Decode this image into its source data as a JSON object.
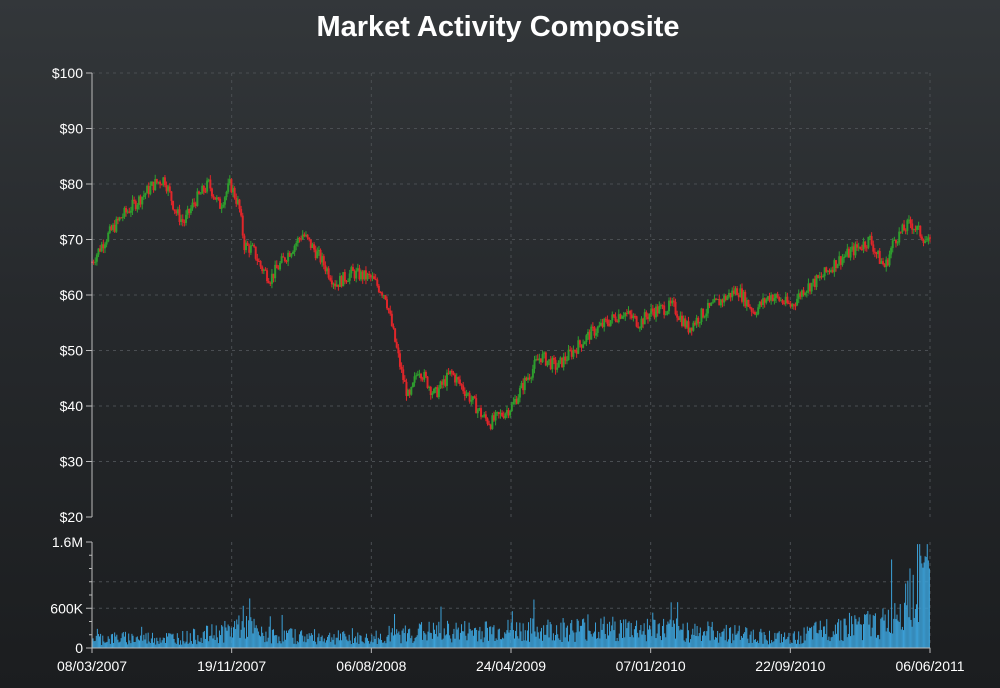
{
  "chart_data": {
    "type": "candlestick",
    "title": "Market Activity Composite",
    "x_axis": {
      "type": "date",
      "range": [
        "2007-03-08",
        "2011-06-06"
      ],
      "tick_labels": [
        "08/03/2007",
        "19/11/2007",
        "06/08/2008",
        "24/04/2009",
        "07/01/2010",
        "22/09/2010",
        "06/06/2011"
      ]
    },
    "price_panel": {
      "ylim": [
        20,
        100
      ],
      "y_ticks": [
        20,
        30,
        40,
        50,
        60,
        70,
        80,
        90,
        100
      ],
      "y_tick_labels": [
        "$20",
        "$30",
        "$40",
        "$50",
        "$60",
        "$70",
        "$80",
        "$90",
        "$100"
      ],
      "up_color": "#2e9e2e",
      "down_color": "#e0262a",
      "approx_close_path": [
        [
          "2007-03-08",
          66
        ],
        [
          "2007-04-01",
          70
        ],
        [
          "2007-05-01",
          74
        ],
        [
          "2007-06-01",
          77
        ],
        [
          "2007-07-01",
          80
        ],
        [
          "2007-07-20",
          81
        ],
        [
          "2007-08-10",
          75
        ],
        [
          "2007-08-25",
          73
        ],
        [
          "2007-09-15",
          77
        ],
        [
          "2007-10-10",
          80
        ],
        [
          "2007-10-30",
          76
        ],
        [
          "2007-11-19",
          80
        ],
        [
          "2007-12-05",
          76
        ],
        [
          "2007-12-15",
          69
        ],
        [
          "2008-01-01",
          68
        ],
        [
          "2008-01-15",
          65
        ],
        [
          "2008-02-01",
          63
        ],
        [
          "2008-03-01",
          67
        ],
        [
          "2008-04-01",
          71
        ],
        [
          "2008-05-01",
          67
        ],
        [
          "2008-06-01",
          62
        ],
        [
          "2008-07-01",
          64
        ],
        [
          "2008-08-06",
          63
        ],
        [
          "2008-09-01",
          60
        ],
        [
          "2008-10-01",
          46
        ],
        [
          "2008-10-15",
          41
        ],
        [
          "2008-11-01",
          47
        ],
        [
          "2008-12-01",
          42
        ],
        [
          "2009-01-01",
          46
        ],
        [
          "2009-02-01",
          42
        ],
        [
          "2009-03-01",
          38
        ],
        [
          "2009-03-15",
          37
        ],
        [
          "2009-04-24",
          40
        ],
        [
          "2009-05-15",
          44
        ],
        [
          "2009-06-15",
          49
        ],
        [
          "2009-07-15",
          47
        ],
        [
          "2009-08-15",
          50
        ],
        [
          "2009-09-15",
          53
        ],
        [
          "2009-10-15",
          55
        ],
        [
          "2009-11-15",
          57
        ],
        [
          "2009-12-15",
          55
        ],
        [
          "2010-01-07",
          57
        ],
        [
          "2010-02-15",
          58
        ],
        [
          "2010-03-15",
          54
        ],
        [
          "2010-04-15",
          57
        ],
        [
          "2010-05-15",
          59
        ],
        [
          "2010-06-15",
          61
        ],
        [
          "2010-07-15",
          57
        ],
        [
          "2010-08-15",
          60
        ],
        [
          "2010-09-22",
          58
        ],
        [
          "2010-10-15",
          61
        ],
        [
          "2010-11-15",
          63
        ],
        [
          "2010-12-15",
          66
        ],
        [
          "2011-01-15",
          68
        ],
        [
          "2011-02-15",
          70
        ],
        [
          "2011-03-01",
          67
        ],
        [
          "2011-03-15",
          65
        ],
        [
          "2011-04-01",
          70
        ],
        [
          "2011-05-01",
          73
        ],
        [
          "2011-05-20",
          71
        ],
        [
          "2011-06-06",
          69
        ]
      ]
    },
    "volume_panel": {
      "ylim": [
        0,
        1600000
      ],
      "y_ticks": [
        0,
        600000,
        1600000
      ],
      "y_tick_labels": [
        "0",
        "600K",
        "1.6M"
      ],
      "bar_color": "#3ca1d8",
      "approx_level_path": [
        [
          "2007-03-08",
          180000
        ],
        [
          "2007-09-01",
          200000
        ],
        [
          "2007-11-19",
          320000
        ],
        [
          "2007-12-10",
          500000
        ],
        [
          "2008-01-15",
          250000
        ],
        [
          "2008-08-06",
          170000
        ],
        [
          "2008-11-01",
          300000
        ],
        [
          "2009-04-24",
          330000
        ],
        [
          "2009-09-01",
          360000
        ],
        [
          "2010-01-07",
          360000
        ],
        [
          "2010-06-01",
          280000
        ],
        [
          "2010-09-22",
          170000
        ],
        [
          "2010-12-15",
          400000
        ],
        [
          "2011-03-15",
          450000
        ],
        [
          "2011-05-15",
          1300000
        ],
        [
          "2011-06-06",
          1400000
        ]
      ],
      "peak": [
        "2011-05-25",
        1420000
      ]
    }
  }
}
